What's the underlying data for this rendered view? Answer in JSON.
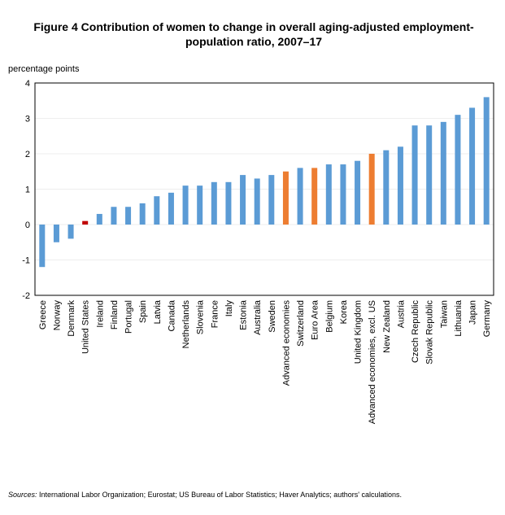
{
  "chart_data": {
    "type": "bar",
    "title": [
      "Figure 4 Contribution of women to change in overall aging-adjusted employment-",
      "population ratio, 2007–17"
    ],
    "ylabel": "percentage points",
    "categories": [
      "Greece",
      "Norway",
      "Denmark",
      "United States",
      "Ireland",
      "Finland",
      "Portugal",
      "Spain",
      "Latvia",
      "Canada",
      "Netherlands",
      "Slovenia",
      "France",
      "Italy",
      "Estonia",
      "Australia",
      "Sweden",
      "Advanced economies",
      "Switzerland",
      "Euro Area",
      "Belgium",
      "Korea",
      "United Kingdom",
      "Advanced economies, excl. US",
      "New Zealand",
      "Austria",
      "Czech Republic",
      "Slovak Republic",
      "Taiwan",
      "Lithuania",
      "Japan",
      "Germany"
    ],
    "values": [
      -1.2,
      -0.5,
      -0.4,
      0.1,
      0.3,
      0.5,
      0.5,
      0.6,
      0.8,
      0.9,
      1.1,
      1.1,
      1.2,
      1.2,
      1.4,
      1.3,
      1.4,
      1.5,
      1.6,
      1.6,
      1.7,
      1.7,
      1.8,
      2.0,
      2.1,
      2.2,
      2.8,
      2.8,
      2.9,
      3.1,
      3.3,
      3.6
    ],
    "colors": [
      "#5b9bd5",
      "#5b9bd5",
      "#5b9bd5",
      "#c00000",
      "#5b9bd5",
      "#5b9bd5",
      "#5b9bd5",
      "#5b9bd5",
      "#5b9bd5",
      "#5b9bd5",
      "#5b9bd5",
      "#5b9bd5",
      "#5b9bd5",
      "#5b9bd5",
      "#5b9bd5",
      "#5b9bd5",
      "#5b9bd5",
      "#ed7d31",
      "#5b9bd5",
      "#ed7d31",
      "#5b9bd5",
      "#5b9bd5",
      "#5b9bd5",
      "#ed7d31",
      "#5b9bd5",
      "#5b9bd5",
      "#5b9bd5",
      "#5b9bd5",
      "#5b9bd5",
      "#5b9bd5",
      "#5b9bd5",
      "#5b9bd5"
    ],
    "ylim": [
      -2,
      4
    ],
    "yticks": [
      -2,
      -1,
      0,
      1,
      2,
      3,
      4
    ],
    "grid": true,
    "note_label": "Sources:",
    "note": " International Labor Organization;  Eurostat; US Bureau of Labor Statistics; Haver Analytics; authors' calculations."
  }
}
